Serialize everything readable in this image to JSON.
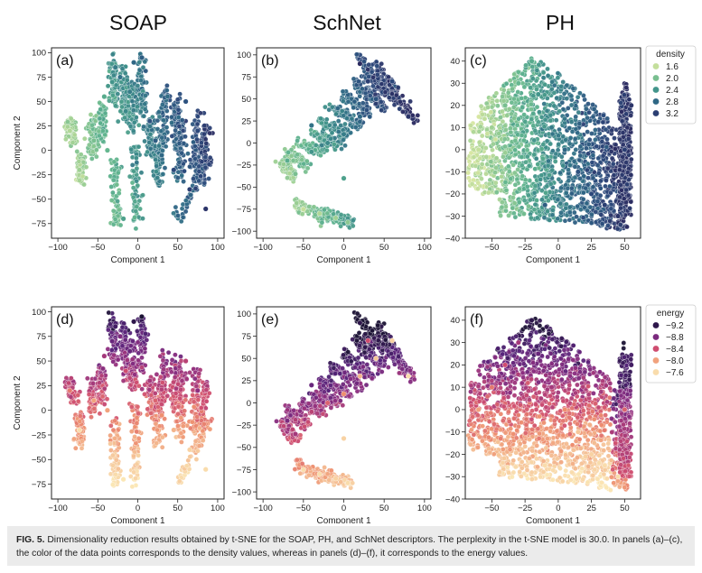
{
  "column_titles": [
    "SOAP",
    "SchNet",
    "PH"
  ],
  "caption": {
    "label": "FIG. 5.",
    "text": " Dimensionality reduction results obtained by t-SNE for the SOAP, PH, and SchNet descriptors. The perplexity in the t-SNE model is 30.0. In panels (a)–(c), the color of the data points corresponds to the density values, whereas in panels (d)–(f), it corresponds to the energy values."
  },
  "colors": {
    "density_scale": [
      "#d6e6a0",
      "#9ccf93",
      "#5fb48e",
      "#3e8f8a",
      "#2f6a86",
      "#2c4a7c",
      "#2a2a60"
    ],
    "energy_scale": [
      "#fbe7b5",
      "#f6c79a",
      "#ee8f6f",
      "#cf4d70",
      "#8e2e80",
      "#55227a",
      "#1b1234"
    ]
  },
  "chart_data": [
    {
      "panel": "(a)",
      "type": "scatter",
      "descriptor": "SOAP",
      "color_by": "density",
      "xlabel": "Component 1",
      "ylabel": "Component 2",
      "xlim": [
        -108,
        108
      ],
      "ylim": [
        -90,
        105
      ],
      "xticks": [
        -100,
        -50,
        0,
        50,
        100
      ],
      "yticks": [
        -75,
        -50,
        -25,
        0,
        25,
        50,
        75,
        100
      ],
      "x": [
        -73,
        -85,
        -55,
        -42,
        -32,
        -28,
        -22,
        -15,
        -5,
        5,
        15,
        22,
        30,
        45,
        65,
        85,
        -18,
        -38,
        -10,
        60,
        75
      ],
      "y": [
        -20,
        20,
        10,
        55,
        70,
        85,
        75,
        40,
        90,
        95,
        30,
        10,
        -5,
        -20,
        -40,
        -60,
        -70,
        0,
        60,
        50,
        20
      ],
      "density": [
        1.8,
        1.7,
        2.0,
        2.2,
        2.4,
        2.6,
        2.7,
        2.5,
        2.8,
        2.9,
        3.0,
        2.9,
        2.8,
        3.1,
        3.2,
        3.3,
        2.3,
        2.1,
        2.6,
        3.0,
        3.1
      ]
    },
    {
      "panel": "(b)",
      "type": "scatter",
      "descriptor": "SchNet",
      "color_by": "density",
      "xlabel": "Component 1",
      "ylabel": "",
      "xlim": [
        -108,
        108
      ],
      "ylim": [
        -108,
        108
      ],
      "xticks": [
        -100,
        -50,
        0,
        50,
        100
      ],
      "yticks": [
        -100,
        -75,
        -50,
        -25,
        0,
        25,
        50,
        75,
        100
      ],
      "x": [
        -50,
        -30,
        -10,
        5,
        -70,
        -60,
        -40,
        -20,
        0,
        20,
        40,
        60,
        80,
        20,
        0,
        -40,
        30
      ],
      "y": [
        -75,
        -80,
        -85,
        -90,
        -20,
        -35,
        -10,
        0,
        10,
        30,
        50,
        70,
        30,
        90,
        -40,
        20,
        70
      ],
      "density": [
        1.6,
        1.7,
        1.8,
        1.9,
        2.2,
        2.0,
        2.4,
        2.5,
        2.6,
        2.8,
        3.0,
        3.1,
        3.3,
        3.4,
        2.3,
        2.7,
        3.2
      ]
    },
    {
      "panel": "(c)",
      "type": "scatter",
      "descriptor": "PH",
      "color_by": "density",
      "xlabel": "Component 1",
      "ylabel": "",
      "xlim": [
        -70,
        62
      ],
      "ylim": [
        -40,
        46
      ],
      "xticks": [
        -50,
        -25,
        0,
        25,
        50
      ],
      "yticks": [
        -40,
        -30,
        -20,
        -10,
        0,
        10,
        20,
        30,
        40
      ],
      "x": [
        -60,
        -50,
        -40,
        -30,
        -20,
        -15,
        -5,
        5,
        15,
        25,
        35,
        45,
        55,
        50,
        -10
      ],
      "y": [
        0,
        10,
        20,
        30,
        40,
        25,
        10,
        0,
        -10,
        -20,
        -25,
        -30,
        20,
        0,
        -25
      ],
      "density": [
        1.6,
        1.8,
        2.0,
        2.1,
        2.2,
        2.4,
        2.6,
        2.8,
        3.0,
        3.1,
        3.2,
        3.3,
        3.3,
        3.2,
        2.9
      ],
      "legend": {
        "title": "density",
        "placement": "top-right",
        "values": [
          "1.6",
          "2.0",
          "2.4",
          "2.8",
          "3.2"
        ]
      }
    },
    {
      "panel": "(d)",
      "type": "scatter",
      "descriptor": "SOAP",
      "color_by": "energy",
      "xlabel": "Component 1",
      "ylabel": "Component 2",
      "xlim": [
        -108,
        108
      ],
      "ylim": [
        -90,
        105
      ],
      "xticks": [
        -100,
        -50,
        0,
        50,
        100
      ],
      "yticks": [
        -75,
        -50,
        -25,
        0,
        25,
        50,
        75,
        100
      ],
      "x": [
        -73,
        -85,
        -55,
        -42,
        -32,
        -28,
        -22,
        -15,
        -5,
        5,
        15,
        22,
        30,
        45,
        65,
        85,
        -18,
        -38,
        -10,
        60,
        75
      ],
      "y": [
        -20,
        20,
        10,
        55,
        70,
        85,
        75,
        40,
        90,
        95,
        30,
        10,
        -5,
        -20,
        -40,
        -60,
        -70,
        0,
        60,
        50,
        20
      ],
      "energy": [
        -7.6,
        -8.2,
        -8.0,
        -8.6,
        -8.9,
        -9.1,
        -8.8,
        -8.4,
        -9.2,
        -9.3,
        -8.6,
        -8.3,
        -8.1,
        -7.9,
        -7.7,
        -7.6,
        -7.5,
        -8.0,
        -8.9,
        -8.5,
        -8.7
      ]
    },
    {
      "panel": "(e)",
      "type": "scatter",
      "descriptor": "SchNet",
      "color_by": "energy",
      "xlabel": "Component 1",
      "ylabel": "",
      "xlim": [
        -108,
        108
      ],
      "ylim": [
        -108,
        108
      ],
      "xticks": [
        -100,
        -50,
        0,
        50,
        100
      ],
      "yticks": [
        -100,
        -75,
        -50,
        -25,
        0,
        25,
        50,
        75,
        100
      ],
      "x": [
        -50,
        -30,
        -10,
        5,
        -70,
        -60,
        -40,
        -20,
        0,
        20,
        40,
        60,
        80,
        20,
        0,
        -40,
        30
      ],
      "y": [
        -75,
        -80,
        -85,
        -90,
        -20,
        -35,
        -10,
        0,
        10,
        30,
        50,
        70,
        30,
        90,
        -40,
        20,
        70
      ],
      "energy": [
        -7.6,
        -7.6,
        -7.7,
        -7.6,
        -8.8,
        -8.6,
        -8.5,
        -8.3,
        -8.1,
        -7.9,
        -7.8,
        -7.7,
        -7.6,
        -9.2,
        -7.7,
        -8.9,
        -8.4
      ]
    },
    {
      "panel": "(f)",
      "type": "scatter",
      "descriptor": "PH",
      "color_by": "energy",
      "xlabel": "Component 1",
      "ylabel": "",
      "xlim": [
        -70,
        62
      ],
      "ylim": [
        -40,
        46
      ],
      "xticks": [
        -50,
        -25,
        0,
        25,
        50
      ],
      "yticks": [
        -40,
        -30,
        -20,
        -10,
        0,
        10,
        20,
        30,
        40
      ],
      "x": [
        -60,
        -50,
        -40,
        -30,
        -20,
        -15,
        -5,
        5,
        15,
        25,
        35,
        45,
        55,
        50,
        -10
      ],
      "y": [
        0,
        10,
        20,
        30,
        40,
        25,
        10,
        0,
        -10,
        -20,
        -25,
        -30,
        20,
        0,
        -25
      ],
      "energy": [
        -8.0,
        -8.2,
        -8.4,
        -8.6,
        -9.2,
        -8.9,
        -8.6,
        -8.1,
        -7.8,
        -7.7,
        -7.6,
        -7.6,
        -9.1,
        -8.3,
        -7.6
      ],
      "legend": {
        "title": "energy",
        "placement": "top-right",
        "values": [
          "−9.2",
          "−8.8",
          "−8.4",
          "−8.0",
          "−7.6"
        ]
      }
    }
  ]
}
